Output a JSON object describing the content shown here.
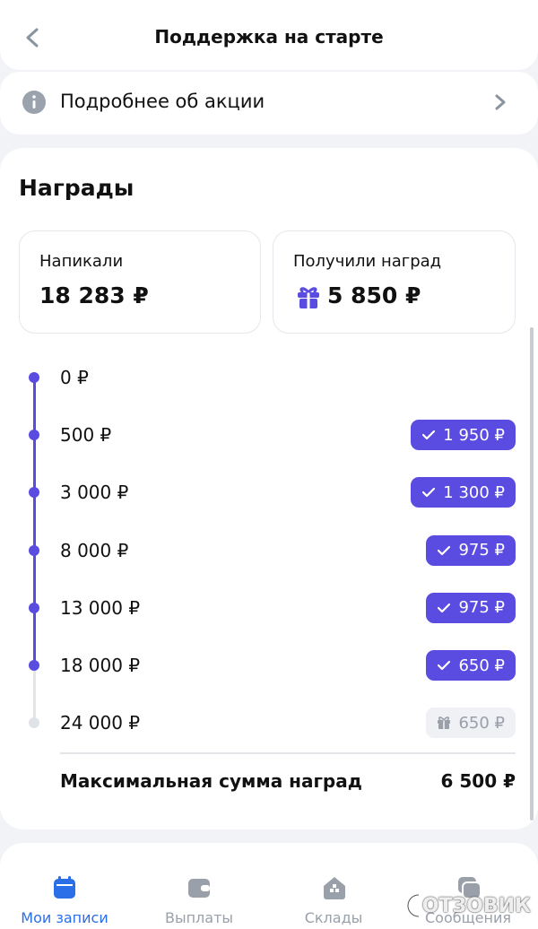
{
  "header": {
    "title": "Поддержка на старте"
  },
  "info": {
    "label": "Подробнее об акции"
  },
  "rewards": {
    "title": "Награды",
    "cards": [
      {
        "label": "Напикали",
        "value": "18 283 ₽"
      },
      {
        "label": "Получили наград",
        "value": "5 850 ₽"
      }
    ],
    "levels": [
      {
        "threshold": "0 ₽",
        "reward": null,
        "achieved": true
      },
      {
        "threshold": "500 ₽",
        "reward": "1 950 ₽",
        "achieved": true
      },
      {
        "threshold": "3 000 ₽",
        "reward": "1 300 ₽",
        "achieved": true
      },
      {
        "threshold": "8 000 ₽",
        "reward": "975 ₽",
        "achieved": true
      },
      {
        "threshold": "13 000 ₽",
        "reward": "975 ₽",
        "achieved": true
      },
      {
        "threshold": "18 000 ₽",
        "reward": "650 ₽",
        "achieved": true
      },
      {
        "threshold": "24 000 ₽",
        "reward": "650 ₽",
        "achieved": false
      }
    ],
    "max": {
      "label": "Максимальная сумма наград",
      "value": "6 500 ₽"
    }
  },
  "nav": [
    {
      "label": "Мои записи",
      "active": true
    },
    {
      "label": "Выплаты",
      "active": false
    },
    {
      "label": "Склады",
      "active": false
    },
    {
      "label": "Сообщения",
      "active": false
    }
  ],
  "watermark": "ОТЗОВИК"
}
